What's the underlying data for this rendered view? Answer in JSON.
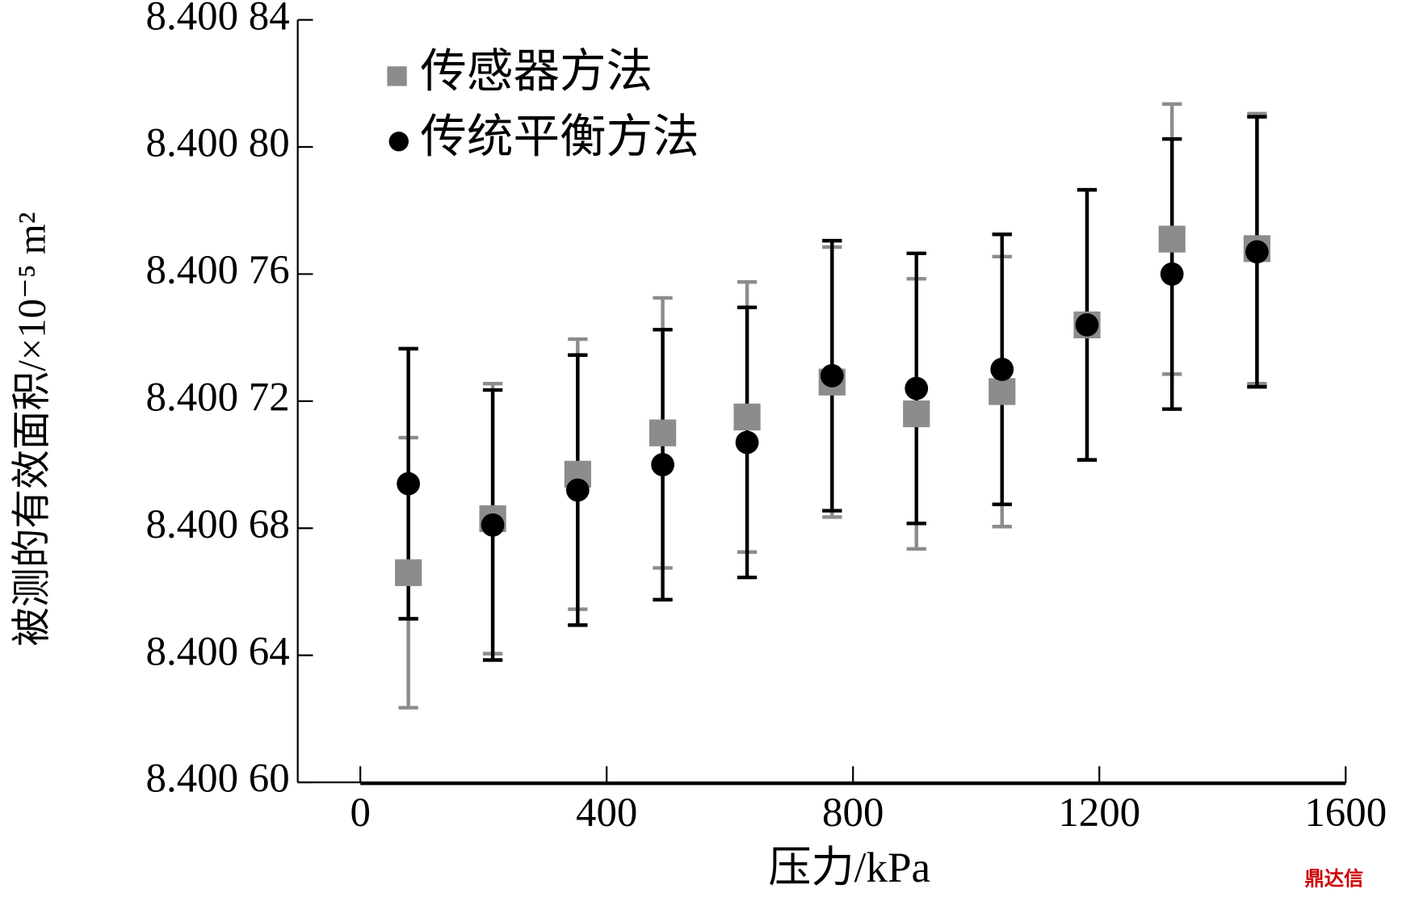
{
  "chart_data": {
    "type": "scatter",
    "xlabel": "压力/kPa",
    "ylabel": "被测的有效面积/×10⁻⁵ m²",
    "xlim": [
      0,
      1600
    ],
    "xticks": [
      0,
      400,
      800,
      1200,
      1600
    ],
    "ylim": [
      8.4006,
      8.40084
    ],
    "yticks": [
      {
        "value": 8.4006,
        "label": "8.400 60"
      },
      {
        "value": 8.40064,
        "label": "8.400 64"
      },
      {
        "value": 8.40068,
        "label": "8.400 68"
      },
      {
        "value": 8.40072,
        "label": "8.400 72"
      },
      {
        "value": 8.40076,
        "label": "8.400 76"
      },
      {
        "value": 8.4008,
        "label": "8.400 80"
      },
      {
        "value": 8.40084,
        "label": "8.400 84"
      }
    ],
    "legend": "upper left",
    "x": [
      78,
      215,
      353,
      491,
      628,
      766,
      903,
      1042,
      1180,
      1318,
      1456
    ],
    "series": [
      {
        "name": "传感器方法",
        "color": "#8c8c8c",
        "marker": "square",
        "values": [
          8.400666,
          8.400683,
          8.400697,
          8.40071,
          8.400715,
          8.400726,
          8.400716,
          8.400723,
          8.400744,
          8.400771,
          8.400768
        ],
        "errors": [
          4.25e-05,
          4.25e-05,
          4.25e-05,
          4.25e-05,
          4.25e-05,
          4.25e-05,
          4.25e-05,
          4.25e-05,
          4.25e-05,
          4.25e-05,
          4.25e-05
        ]
      },
      {
        "name": "传统平衡方法",
        "color": "#000000",
        "marker": "circle",
        "values": [
          8.400694,
          8.400681,
          8.400692,
          8.4007,
          8.400707,
          8.400728,
          8.400724,
          8.40073,
          8.400744,
          8.40076,
          8.400767
        ],
        "errors": [
          4.25e-05,
          4.25e-05,
          4.25e-05,
          4.25e-05,
          4.25e-05,
          4.25e-05,
          4.25e-05,
          4.25e-05,
          4.25e-05,
          4.25e-05,
          4.25e-05
        ]
      }
    ],
    "watermark": "鼎达信"
  }
}
